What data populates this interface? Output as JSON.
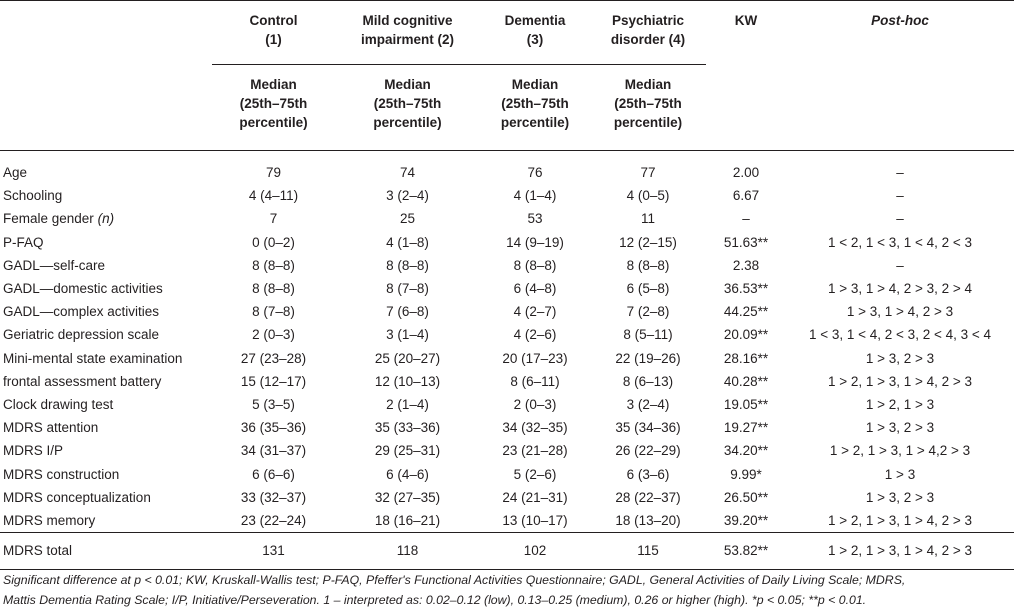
{
  "columns": [
    {
      "line1": "Control",
      "line2": "(1)"
    },
    {
      "line1": "Mild cognitive",
      "line2": "impairment (2)"
    },
    {
      "line1": "Dementia",
      "line2": "(3)"
    },
    {
      "line1": "Psychiatric",
      "line2": "disorder (4)"
    },
    {
      "line1": "KW",
      "line2": ""
    },
    {
      "line1": "Post-hoc",
      "line2": ""
    }
  ],
  "subheader": {
    "line1": "Median",
    "line2": "(25th–75th",
    "line3": "percentile)"
  },
  "rows": [
    {
      "label": "Age",
      "c1": "79",
      "c2": "74",
      "c3": "76",
      "c4": "77",
      "kw": "2.00",
      "posthoc": "–"
    },
    {
      "label": "Schooling",
      "c1": "4 (4–11)",
      "c2": "3 (2–4)",
      "c3": "4 (1–4)",
      "c4": "4 (0–5)",
      "kw": "6.67",
      "posthoc": "–"
    },
    {
      "label": "Female gender",
      "label_suffix": "(n)",
      "c1": "7",
      "c2": "25",
      "c3": "53",
      "c4": "11",
      "kw": "–",
      "posthoc": "–"
    },
    {
      "label": "P-FAQ",
      "c1": "0 (0–2)",
      "c2": "4 (1–8)",
      "c3": "14 (9–19)",
      "c4": "12 (2–15)",
      "kw": "51.63**",
      "posthoc": "1 < 2, 1 < 3, 1 < 4, 2 < 3"
    },
    {
      "label": "GADL—self-care",
      "c1": "8 (8–8)",
      "c2": "8 (8–8)",
      "c3": "8 (8–8)",
      "c4": "8 (8–8)",
      "kw": "2.38",
      "posthoc": "–"
    },
    {
      "label": "GADL—domestic activities",
      "c1": "8 (8–8)",
      "c2": "8 (7–8)",
      "c3": "6 (4–8)",
      "c4": "6 (5–8)",
      "kw": "36.53**",
      "posthoc": "1 > 3, 1 > 4, 2 > 3, 2 > 4"
    },
    {
      "label": "GADL—complex activities",
      "c1": "8 (7–8)",
      "c2": "7 (6–8)",
      "c3": "4 (2–7)",
      "c4": "7 (2–8)",
      "kw": "44.25**",
      "posthoc": "1 > 3, 1 > 4, 2 > 3"
    },
    {
      "label": "Geriatric depression scale",
      "c1": "2 (0–3)",
      "c2": "3 (1–4)",
      "c3": "4 (2–6)",
      "c4": "8 (5–11)",
      "kw": "20.09**",
      "posthoc": "1 < 3, 1 < 4, 2 < 3, 2 < 4, 3 < 4"
    },
    {
      "label": "Mini-mental state examination",
      "c1": "27 (23–28)",
      "c2": "25 (20–27)",
      "c3": "20 (17–23)",
      "c4": "22 (19–26)",
      "kw": "28.16**",
      "posthoc": "1 > 3, 2 > 3"
    },
    {
      "label": "frontal assessment battery",
      "c1": "15 (12–17)",
      "c2": "12 (10–13)",
      "c3": "8 (6–11)",
      "c4": "8 (6–13)",
      "kw": "40.28**",
      "posthoc": "1 > 2, 1 > 3, 1 > 4, 2 > 3"
    },
    {
      "label": "Clock drawing test",
      "c1": "5 (3–5)",
      "c2": "2 (1–4)",
      "c3": "2 (0–3)",
      "c4": "3 (2–4)",
      "kw": "19.05**",
      "posthoc": "1 > 2, 1 > 3"
    },
    {
      "label": "MDRS attention",
      "c1": "36 (35–36)",
      "c2": "35 (33–36)",
      "c3": "34 (32–35)",
      "c4": "35 (34–36)",
      "kw": "19.27**",
      "posthoc": "1 > 3, 2 > 3"
    },
    {
      "label": "MDRS I/P",
      "c1": "34 (31–37)",
      "c2": "29 (25–31)",
      "c3": "23 (21–28)",
      "c4": "26 (22–29)",
      "kw": "34.20**",
      "posthoc": "1 > 2, 1 > 3, 1 > 4,2 > 3"
    },
    {
      "label": "MDRS construction",
      "c1": "6 (6–6)",
      "c2": "6 (4–6)",
      "c3": "5 (2–6)",
      "c4": "6 (3–6)",
      "kw": "9.99*",
      "posthoc": "1 > 3"
    },
    {
      "label": "MDRS conceptualization",
      "c1": "33 (32–37)",
      "c2": "32 (27–35)",
      "c3": "24 (21–31)",
      "c4": "28 (22–37)",
      "kw": "26.50**",
      "posthoc": "1 > 3, 2 > 3"
    },
    {
      "label": "MDRS memory",
      "c1": "23 (22–24)",
      "c2": "18 (16–21)",
      "c3": "13 (10–17)",
      "c4": "18 (13–20)",
      "kw": "39.20**",
      "posthoc": "1 > 2, 1 > 3, 1 > 4, 2 > 3"
    }
  ],
  "total": {
    "label": "MDRS total",
    "c1": "131",
    "c2": "118",
    "c3": "102",
    "c4": "115",
    "kw": "53.82**",
    "posthoc": "1 > 2, 1 > 3, 1 > 4, 2 > 3"
  },
  "footnote": {
    "line1": "Significant difference at p < 0.01; KW, Kruskall-Wallis test; P-FAQ, Pfeffer's Functional Activities Questionnaire; GADL, General Activities of Daily Living Scale; MDRS,",
    "line2": "Mattis Dementia Rating Scale; I/P, Initiative/Perseveration. 1 – interpreted as: 0.02–0.12 (low), 0.13–0.25 (medium), 0.26 or higher (high). *p < 0.05; **p < 0.01."
  }
}
